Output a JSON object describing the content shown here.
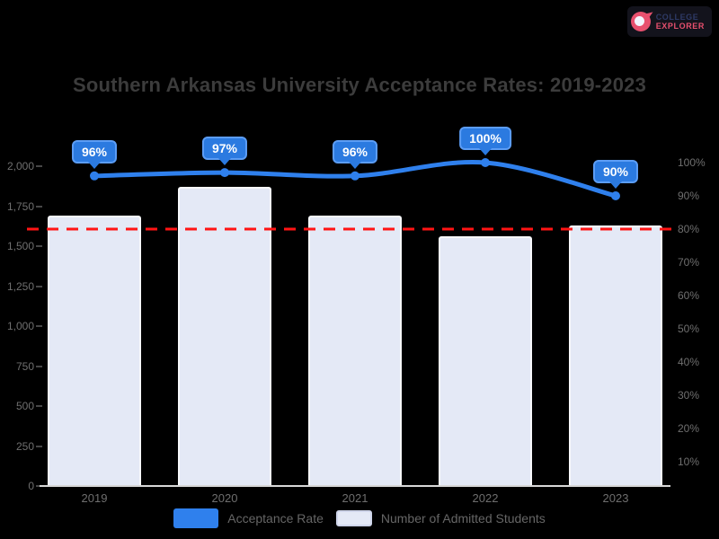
{
  "page": {
    "background": "#000000"
  },
  "logo": {
    "line1": "COLLEGE",
    "line2": "EXPLORER",
    "accent": "#E8506E"
  },
  "chart_data": {
    "type": "combo-bar-line",
    "title": "Southern Arkansas University Acceptance Rates: 2019-2023",
    "categories": [
      "2019",
      "2020",
      "2021",
      "2022",
      "2023"
    ],
    "series": [
      {
        "name": "Acceptance Rate",
        "type": "line",
        "axis": "right",
        "unit": "%",
        "values": [
          96,
          97,
          96,
          100,
          90
        ],
        "point_labels": [
          "96%",
          "97%",
          "96%",
          "100%",
          "90%"
        ],
        "color": "#2F80ED",
        "badge_fill": "#2B7AE0",
        "badge_border": "#5C9DF5"
      },
      {
        "name": "Number of Admitted Students",
        "type": "bar",
        "axis": "left",
        "values": [
          1690,
          1870,
          1690,
          1560,
          1630
        ],
        "fill": "#E4E9F6",
        "border": "#F7F8FB"
      }
    ],
    "left_axis": {
      "min": 0,
      "max": 2000,
      "ticks": [
        "2,000",
        "1,750",
        "1,500",
        "1,250",
        "1,000",
        "750",
        "500",
        "250",
        "0"
      ]
    },
    "right_axis": {
      "min": 10,
      "max": 100,
      "ticks": [
        "100%",
        "90%",
        "80%",
        "70%",
        "60%",
        "50%",
        "40%",
        "30%",
        "20%",
        "10%"
      ]
    },
    "reference_line": {
      "axis": "right",
      "value": 80,
      "color": "#FF1414",
      "style": "dashed"
    },
    "axis_line_color": "#D8D8D8",
    "grid": false,
    "legend_position": "bottom"
  },
  "legend": {
    "items": [
      {
        "label": "Acceptance Rate",
        "swatch": "#2F80ED"
      },
      {
        "label": "Number of Admitted Students",
        "swatch": "#E4E9F6",
        "swatch_border": "#CFD5EA"
      }
    ]
  }
}
